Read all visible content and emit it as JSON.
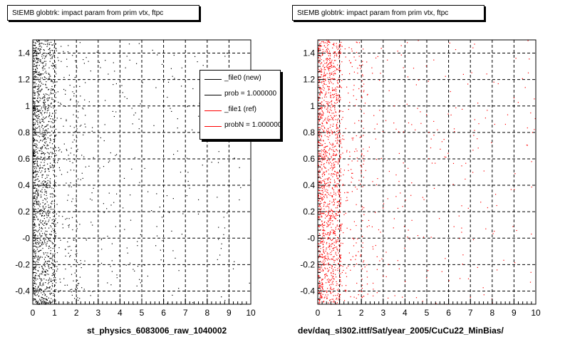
{
  "colors": {
    "series_new": "#000000",
    "series_ref": "#ff0000",
    "frame": "#000000",
    "grid": "#000000",
    "background": "#ffffff"
  },
  "corner_stamp": "",
  "chart_data": [
    {
      "type": "scatter",
      "title": "StEMB globtrk: impact param from prim vtx, ftpc",
      "xlabel": "st_physics_6083006_raw_1040002",
      "ylabel": "",
      "xlim": [
        0,
        10
      ],
      "ylim": [
        -0.5,
        1.5
      ],
      "x_ticks": [
        "0",
        "1",
        "2",
        "3",
        "4",
        "5",
        "6",
        "7",
        "8",
        "9",
        "10"
      ],
      "y_ticks": [
        "-0.4",
        "-0.2",
        "-0",
        "0.2",
        "0.4",
        "0.6",
        "0.8",
        "1",
        "1.2",
        "1.4"
      ],
      "grid": true,
      "legend_position": "top-right",
      "legend": [
        {
          "label": "_file0 (new)",
          "color": "#000000"
        },
        {
          "label": "prob = 1.000000",
          "color": "#000000"
        },
        {
          "label": "_file1 (ref)",
          "color": "#ff0000"
        },
        {
          "label": "probN = 1.000000",
          "color": "#ff0000"
        }
      ],
      "series": [
        {
          "name": "_file0 (new)",
          "color": "#000000",
          "density": "dense at x 0–1, sparse tail to x 10, uniform in y"
        }
      ]
    },
    {
      "type": "scatter",
      "title": "StEMB globtrk: impact param from prim vtx, ftpc",
      "xlabel": "dev/daq_sl302.ittf/Sat/year_2005/CuCu22_MinBias/",
      "ylabel": "",
      "xlim": [
        0,
        10
      ],
      "ylim": [
        -0.5,
        1.5
      ],
      "x_ticks": [
        "0",
        "1",
        "2",
        "3",
        "4",
        "5",
        "6",
        "7",
        "8",
        "9",
        "10"
      ],
      "y_ticks": [
        "-0.4",
        "-0.2",
        "-0",
        "0.2",
        "0.4",
        "0.6",
        "0.8",
        "1",
        "1.2",
        "1.4"
      ],
      "grid": true,
      "series": [
        {
          "name": "_file1 (ref)",
          "color": "#ff0000",
          "density": "dense at x 0–1, sparse tail to x 10, uniform in y"
        }
      ]
    }
  ]
}
